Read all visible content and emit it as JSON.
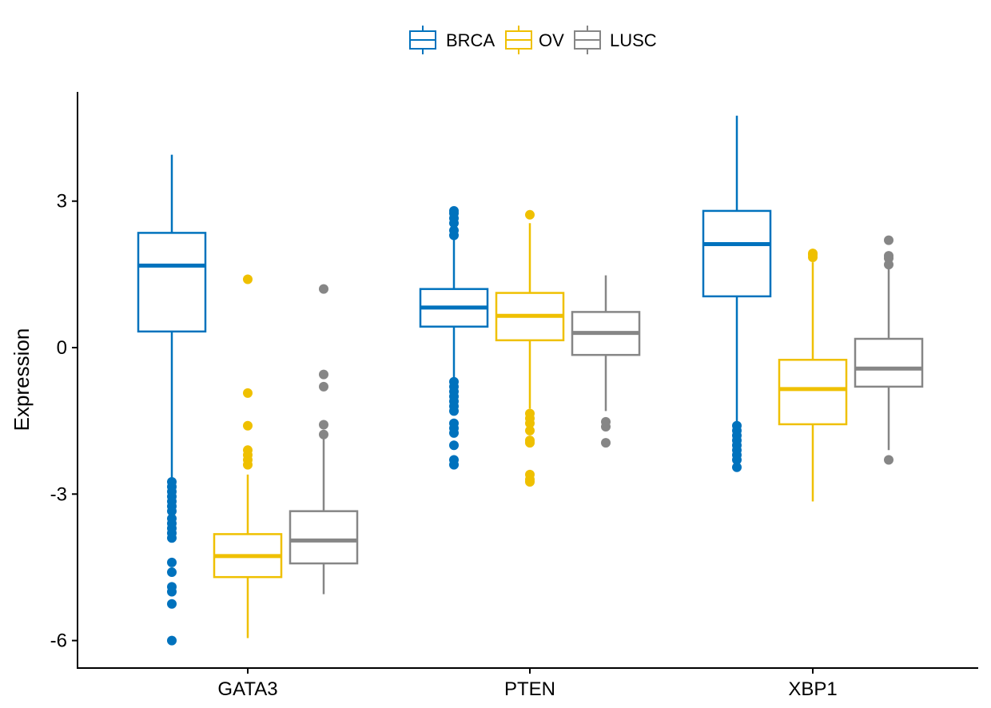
{
  "chart_data": {
    "type": "box",
    "title": "",
    "xlabel": "",
    "ylabel": "Expression",
    "ylim": [
      -6.5,
      5.2
    ],
    "yticks": [
      3,
      0,
      -3,
      -6
    ],
    "ytick_labels": [
      "3",
      "0",
      "-3",
      "-6"
    ],
    "categories": [
      "GATA3",
      "PTEN",
      "XBP1"
    ],
    "legend_position": "top",
    "grid": false,
    "series": [
      {
        "name": "BRCA",
        "color": "#0072BD",
        "boxes": [
          {
            "whisker_low": -2.7,
            "q1": 0.33,
            "median": 1.68,
            "q3": 2.35,
            "whisker_high": 3.95,
            "outliers": [
              -2.75,
              -2.85,
              -2.95,
              -3.05,
              -3.15,
              -3.25,
              -3.35,
              -3.5,
              -3.6,
              -3.7,
              -3.8,
              -3.9,
              -4.4,
              -4.6,
              -4.9,
              -5.0,
              -5.25,
              -6.0
            ]
          },
          {
            "whisker_low": -0.65,
            "q1": 0.43,
            "median": 0.82,
            "q3": 1.2,
            "whisker_high": 2.3,
            "outliers": [
              2.3,
              2.4,
              2.55,
              2.65,
              2.75,
              2.8,
              -0.7,
              -0.8,
              -0.9,
              -1.0,
              -1.1,
              -1.2,
              -1.3,
              -1.55,
              -1.65,
              -1.75,
              -2.0,
              -2.3,
              -2.4
            ]
          },
          {
            "whisker_low": -1.55,
            "q1": 1.05,
            "median": 2.12,
            "q3": 2.8,
            "whisker_high": 4.75,
            "outliers": [
              -1.6,
              -1.7,
              -1.8,
              -1.9,
              -2.0,
              -2.1,
              -2.2,
              -2.3,
              -2.45
            ]
          }
        ]
      },
      {
        "name": "OV",
        "color": "#EFC000",
        "boxes": [
          {
            "whisker_low": -5.95,
            "q1": -4.7,
            "median": -4.27,
            "q3": -3.82,
            "whisker_high": -2.6,
            "outliers": [
              1.4,
              -0.93,
              -1.6,
              -2.1,
              -2.2,
              -2.3,
              -2.4
            ]
          },
          {
            "whisker_low": -1.25,
            "q1": 0.15,
            "median": 0.65,
            "q3": 1.12,
            "whisker_high": 2.55,
            "outliers": [
              2.72,
              -1.35,
              -1.45,
              -1.55,
              -1.7,
              -1.9,
              -1.95,
              -2.6,
              -2.7,
              -2.75
            ]
          },
          {
            "whisker_low": -3.15,
            "q1": -1.57,
            "median": -0.85,
            "q3": -0.25,
            "whisker_high": 1.75,
            "outliers": [
              1.85,
              1.9,
              1.93
            ]
          }
        ]
      },
      {
        "name": "LUSC",
        "color": "#868686",
        "boxes": [
          {
            "whisker_low": -5.05,
            "q1": -4.42,
            "median": -3.95,
            "q3": -3.35,
            "whisker_high": -1.85,
            "outliers": [
              1.2,
              -0.55,
              -0.8,
              -1.58,
              -1.78
            ]
          },
          {
            "whisker_low": -1.3,
            "q1": -0.15,
            "median": 0.3,
            "q3": 0.73,
            "whisker_high": 1.48,
            "outliers": [
              -1.52,
              -1.62,
              -1.95
            ]
          },
          {
            "whisker_low": -2.1,
            "q1": -0.8,
            "median": -0.43,
            "q3": 0.18,
            "whisker_high": 1.65,
            "outliers": [
              1.7,
              1.83,
              1.88,
              2.2,
              -2.3
            ]
          }
        ]
      }
    ]
  }
}
